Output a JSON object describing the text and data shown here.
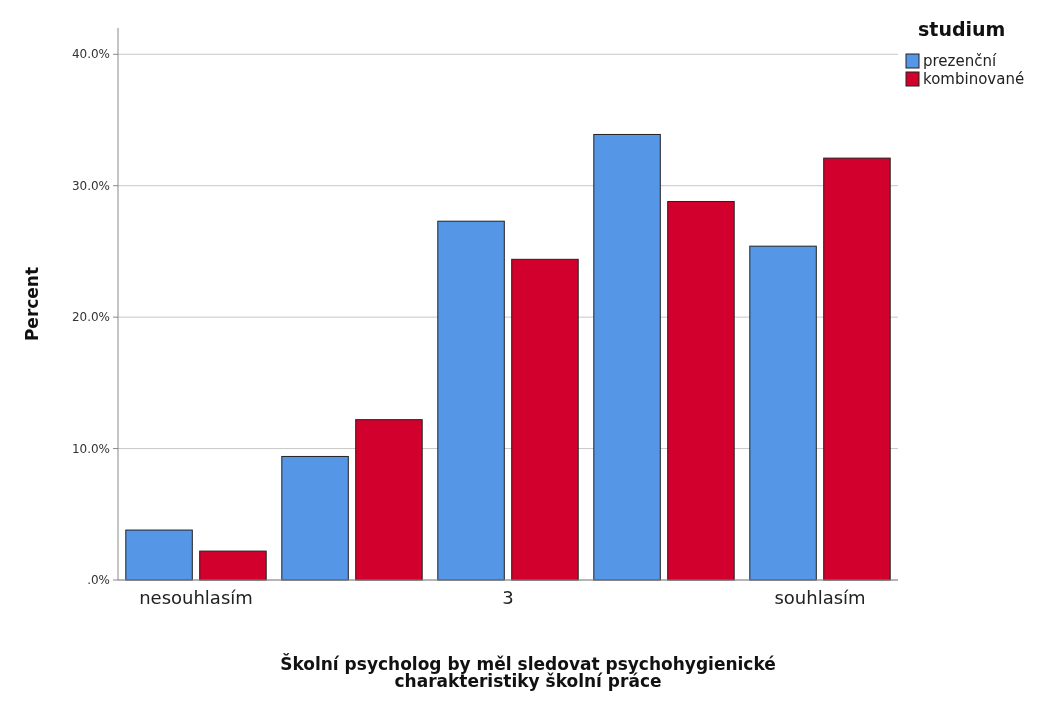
{
  "chart_data": {
    "type": "bar",
    "xlabel": "Školní psycholog by měl sledovat psychohygienické charakteristiky školní práce",
    "ylabel": "Percent",
    "legend_title": "studium",
    "legend": "top right",
    "grid": "y",
    "categories": [
      "nesouhlasím",
      null,
      "3",
      null,
      "souhlasím"
    ],
    "series": [
      {
        "name": "prezenční",
        "color": "#5596e6",
        "values": [
          3.8,
          9.4,
          27.3,
          33.9,
          25.4
        ]
      },
      {
        "name": "kombinované",
        "color": "#d1002c",
        "values": [
          2.2,
          12.2,
          24.4,
          28.8,
          32.1
        ]
      }
    ],
    "ylim": [
      0,
      42
    ],
    "yticks": [
      {
        "value": 0,
        "label": ".0%"
      },
      {
        "value": 10,
        "label": "10.0%"
      },
      {
        "value": 20,
        "label": "20.0%"
      },
      {
        "value": 30,
        "label": "30.0%"
      },
      {
        "value": 40,
        "label": "40.0%"
      }
    ]
  }
}
